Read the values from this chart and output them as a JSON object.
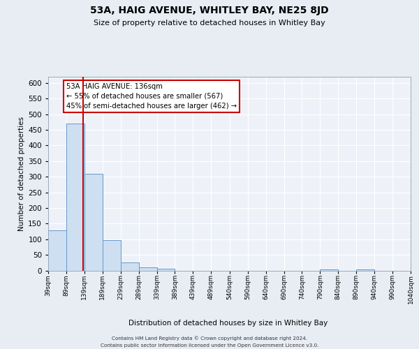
{
  "title": "53A, HAIG AVENUE, WHITLEY BAY, NE25 8JD",
  "subtitle": "Size of property relative to detached houses in Whitley Bay",
  "xlabel": "Distribution of detached houses by size in Whitley Bay",
  "ylabel": "Number of detached properties",
  "bar_values": [
    128,
    470,
    310,
    97,
    26,
    10,
    5,
    0,
    0,
    0,
    0,
    0,
    0,
    0,
    0,
    4,
    0,
    3,
    0,
    0
  ],
  "bin_labels": [
    "39sqm",
    "89sqm",
    "139sqm",
    "189sqm",
    "239sqm",
    "289sqm",
    "339sqm",
    "389sqm",
    "439sqm",
    "489sqm",
    "540sqm",
    "590sqm",
    "640sqm",
    "690sqm",
    "740sqm",
    "790sqm",
    "840sqm",
    "890sqm",
    "940sqm",
    "990sqm",
    "1040sqm"
  ],
  "bar_color": "#cddff0",
  "bar_edge_color": "#6699cc",
  "red_line_x": 136,
  "annotation_line1": "53A HAIG AVENUE: 136sqm",
  "annotation_line2": "← 55% of detached houses are smaller (567)",
  "annotation_line3": "45% of semi-detached houses are larger (462) →",
  "annotation_box_color": "#ffffff",
  "annotation_box_edge": "#cc0000",
  "ylim": [
    0,
    620
  ],
  "yticks": [
    0,
    50,
    100,
    150,
    200,
    250,
    300,
    350,
    400,
    450,
    500,
    550,
    600
  ],
  "footer_line1": "Contains HM Land Registry data © Crown copyright and database right 2024.",
  "footer_line2": "Contains public sector information licensed under the Open Government Licence v3.0.",
  "background_color": "#e8edf4",
  "plot_bg_color": "#eef2f8",
  "grid_color": "#ffffff",
  "bin_edges": [
    39,
    89,
    139,
    189,
    239,
    289,
    339,
    389,
    439,
    489,
    540,
    590,
    640,
    690,
    740,
    790,
    840,
    890,
    940,
    990,
    1040
  ]
}
